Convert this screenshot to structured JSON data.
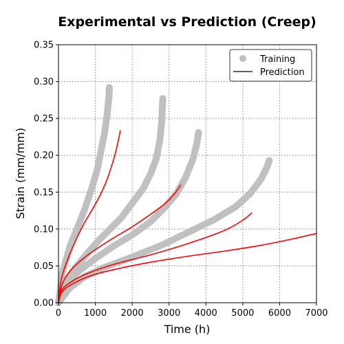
{
  "chart_data": {
    "type": "scatter",
    "title": "Experimental vs Prediction (Creep)",
    "xlabel": "Time (h)",
    "ylabel": "Strain (mm/mm)",
    "xlim": [
      0,
      7000
    ],
    "ylim": [
      0,
      0.35
    ],
    "xticks": [
      "0",
      "1000",
      "2000",
      "3000",
      "4000",
      "5000",
      "6000",
      "7000"
    ],
    "yticks": [
      "0.00",
      "0.05",
      "0.10",
      "0.15",
      "0.20",
      "0.25",
      "0.30",
      "0.35"
    ],
    "grid": "dotted",
    "legend": {
      "position": "top-right",
      "entries": [
        "Training",
        "Prediction"
      ]
    },
    "colors": {
      "training": "#c0c0c0",
      "prediction": "#ff0000",
      "grid": "#808080"
    },
    "series": [
      {
        "name": "Training",
        "type": "scatter",
        "curves": [
          [
            [
              0,
              0
            ],
            [
              100,
              0.04
            ],
            [
              300,
              0.075
            ],
            [
              500,
              0.1
            ],
            [
              700,
              0.125
            ],
            [
              900,
              0.155
            ],
            [
              1050,
              0.18
            ],
            [
              1150,
              0.205
            ],
            [
              1250,
              0.23
            ],
            [
              1320,
              0.255
            ],
            [
              1350,
              0.27
            ],
            [
              1370,
              0.28
            ],
            [
              1380,
              0.292
            ]
          ],
          [
            [
              0,
              0
            ],
            [
              200,
              0.03
            ],
            [
              500,
              0.05
            ],
            [
              800,
              0.068
            ],
            [
              1100,
              0.085
            ],
            [
              1400,
              0.1
            ],
            [
              1700,
              0.115
            ],
            [
              2000,
              0.135
            ],
            [
              2300,
              0.155
            ],
            [
              2500,
              0.175
            ],
            [
              2650,
              0.195
            ],
            [
              2750,
              0.22
            ],
            [
              2800,
              0.245
            ],
            [
              2820,
              0.265
            ],
            [
              2830,
              0.277
            ]
          ],
          [
            [
              0,
              0
            ],
            [
              200,
              0.025
            ],
            [
              600,
              0.045
            ],
            [
              1000,
              0.06
            ],
            [
              1500,
              0.077
            ],
            [
              2000,
              0.092
            ],
            [
              2500,
              0.11
            ],
            [
              2900,
              0.13
            ],
            [
              3200,
              0.148
            ],
            [
              3450,
              0.17
            ],
            [
              3650,
              0.195
            ],
            [
              3750,
              0.215
            ],
            [
              3800,
              0.231
            ]
          ],
          [
            [
              0,
              0
            ],
            [
              300,
              0.02
            ],
            [
              700,
              0.035
            ],
            [
              1200,
              0.047
            ],
            [
              2000,
              0.062
            ],
            [
              2800,
              0.078
            ],
            [
              3500,
              0.095
            ],
            [
              4200,
              0.112
            ],
            [
              4800,
              0.13
            ],
            [
              5200,
              0.148
            ],
            [
              5500,
              0.168
            ],
            [
              5650,
              0.183
            ],
            [
              5720,
              0.193
            ]
          ]
        ]
      },
      {
        "name": "Prediction",
        "type": "line",
        "curves": [
          [
            [
              0,
              0
            ],
            [
              50,
              0.025
            ],
            [
              150,
              0.045
            ],
            [
              300,
              0.065
            ],
            [
              500,
              0.088
            ],
            [
              700,
              0.108
            ],
            [
              900,
              0.125
            ],
            [
              1100,
              0.143
            ],
            [
              1300,
              0.165
            ],
            [
              1500,
              0.195
            ],
            [
              1600,
              0.215
            ],
            [
              1680,
              0.234
            ]
          ],
          [
            [
              0,
              0
            ],
            [
              100,
              0.025
            ],
            [
              300,
              0.042
            ],
            [
              600,
              0.057
            ],
            [
              1000,
              0.072
            ],
            [
              1500,
              0.088
            ],
            [
              2000,
              0.103
            ],
            [
              2500,
              0.12
            ],
            [
              2900,
              0.135
            ],
            [
              3150,
              0.148
            ],
            [
              3320,
              0.16
            ]
          ],
          [
            [
              0,
              0
            ],
            [
              100,
              0.018
            ],
            [
              400,
              0.03
            ],
            [
              800,
              0.04
            ],
            [
              1500,
              0.052
            ],
            [
              2500,
              0.065
            ],
            [
              3500,
              0.08
            ],
            [
              4500,
              0.098
            ],
            [
              5000,
              0.112
            ],
            [
              5250,
              0.122
            ]
          ],
          [
            [
              0,
              0
            ],
            [
              100,
              0.015
            ],
            [
              400,
              0.026
            ],
            [
              900,
              0.037
            ],
            [
              1600,
              0.046
            ],
            [
              2500,
              0.055
            ],
            [
              3500,
              0.063
            ],
            [
              4500,
              0.07
            ],
            [
              5500,
              0.078
            ],
            [
              6300,
              0.086
            ],
            [
              7000,
              0.094
            ]
          ]
        ]
      }
    ]
  }
}
